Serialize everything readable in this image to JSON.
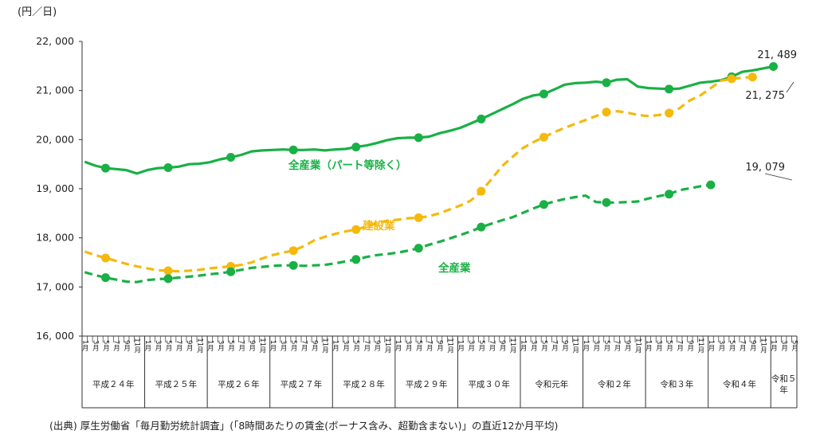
{
  "unit_label": "(円／日)",
  "source_note": "(出典) 厚生労働省「毎月勤労統計調査」(「8時間あたりの賃金(ボーナス含み、超勤含まない)」の直近12か月平均)",
  "colors": {
    "all_excl_part": "#19b045",
    "construction": "#f5b90d",
    "all_industries": "#19b045"
  },
  "chart_data": {
    "type": "line",
    "title": "",
    "xlabel": "",
    "ylabel": "(円／日)",
    "ylim": [
      16000,
      22000
    ],
    "yticks": [
      "16, 000",
      "17, 000",
      "18, 000",
      "19, 000",
      "20, 000",
      "21, 000",
      "22, 000"
    ],
    "month_ticks": [
      "1月",
      "3月",
      "5月",
      "7月",
      "9月",
      "11月"
    ],
    "last_month_ticks": [
      "1月",
      "3月",
      "5月"
    ],
    "years": [
      "平成２４年",
      "平成２５年",
      "平成２６年",
      "平成２７年",
      "平成２８年",
      "平成２９年",
      "平成３０年",
      "令和元年",
      "令和２年",
      "令和３年",
      "令和４年",
      "令和５\n年"
    ],
    "x_index_note": "months since 平成24年1月",
    "series": [
      {
        "name": "全産業（パート等除く）",
        "style": "solid",
        "marker_at": [
          4,
          16,
          28,
          40,
          52,
          64,
          76,
          88,
          100,
          112,
          124,
          136
        ],
        "points": [
          [
            0,
            19550
          ],
          [
            2,
            19470
          ],
          [
            4,
            19420
          ],
          [
            6,
            19400
          ],
          [
            8,
            19380
          ],
          [
            10,
            19310
          ],
          [
            12,
            19380
          ],
          [
            14,
            19420
          ],
          [
            16,
            19430
          ],
          [
            18,
            19450
          ],
          [
            20,
            19500
          ],
          [
            22,
            19510
          ],
          [
            24,
            19540
          ],
          [
            26,
            19600
          ],
          [
            28,
            19640
          ],
          [
            30,
            19690
          ],
          [
            32,
            19760
          ],
          [
            34,
            19780
          ],
          [
            36,
            19790
          ],
          [
            38,
            19800
          ],
          [
            40,
            19790
          ],
          [
            42,
            19790
          ],
          [
            44,
            19800
          ],
          [
            46,
            19780
          ],
          [
            48,
            19800
          ],
          [
            50,
            19810
          ],
          [
            52,
            19850
          ],
          [
            54,
            19880
          ],
          [
            56,
            19930
          ],
          [
            58,
            19990
          ],
          [
            60,
            20030
          ],
          [
            62,
            20040
          ],
          [
            64,
            20040
          ],
          [
            66,
            20060
          ],
          [
            68,
            20130
          ],
          [
            70,
            20180
          ],
          [
            72,
            20240
          ],
          [
            74,
            20330
          ],
          [
            76,
            20420
          ],
          [
            78,
            20520
          ],
          [
            80,
            20620
          ],
          [
            82,
            20720
          ],
          [
            84,
            20830
          ],
          [
            86,
            20900
          ],
          [
            88,
            20930
          ],
          [
            90,
            21020
          ],
          [
            92,
            21120
          ],
          [
            94,
            21150
          ],
          [
            96,
            21160
          ],
          [
            98,
            21180
          ],
          [
            100,
            21160
          ],
          [
            102,
            21220
          ],
          [
            104,
            21230
          ],
          [
            106,
            21080
          ],
          [
            108,
            21050
          ],
          [
            110,
            21040
          ],
          [
            112,
            21030
          ],
          [
            114,
            21040
          ],
          [
            116,
            21100
          ],
          [
            118,
            21160
          ],
          [
            120,
            21180
          ],
          [
            122,
            21210
          ],
          [
            124,
            21280
          ],
          [
            126,
            21380
          ],
          [
            128,
            21410
          ],
          [
            130,
            21450
          ],
          [
            132,
            21489
          ]
        ]
      },
      {
        "name": "建設業",
        "style": "dashed",
        "marker_at": [
          4,
          16,
          28,
          40,
          52,
          64,
          76,
          88,
          100,
          112,
          124,
          136
        ],
        "points": [
          [
            0,
            17720
          ],
          [
            2,
            17650
          ],
          [
            4,
            17590
          ],
          [
            6,
            17530
          ],
          [
            8,
            17470
          ],
          [
            10,
            17420
          ],
          [
            12,
            17380
          ],
          [
            14,
            17340
          ],
          [
            16,
            17330
          ],
          [
            18,
            17320
          ],
          [
            20,
            17330
          ],
          [
            22,
            17350
          ],
          [
            24,
            17380
          ],
          [
            26,
            17400
          ],
          [
            28,
            17420
          ],
          [
            30,
            17450
          ],
          [
            32,
            17500
          ],
          [
            34,
            17580
          ],
          [
            36,
            17650
          ],
          [
            38,
            17700
          ],
          [
            40,
            17740
          ],
          [
            42,
            17830
          ],
          [
            44,
            17950
          ],
          [
            46,
            18020
          ],
          [
            48,
            18080
          ],
          [
            50,
            18130
          ],
          [
            52,
            18170
          ],
          [
            54,
            18230
          ],
          [
            56,
            18300
          ],
          [
            58,
            18350
          ],
          [
            60,
            18370
          ],
          [
            62,
            18400
          ],
          [
            64,
            18410
          ],
          [
            66,
            18440
          ],
          [
            68,
            18500
          ],
          [
            70,
            18580
          ],
          [
            72,
            18660
          ],
          [
            74,
            18760
          ],
          [
            76,
            18950
          ],
          [
            78,
            19200
          ],
          [
            80,
            19460
          ],
          [
            82,
            19650
          ],
          [
            84,
            19830
          ],
          [
            86,
            19950
          ],
          [
            88,
            20050
          ],
          [
            90,
            20150
          ],
          [
            92,
            20240
          ],
          [
            94,
            20320
          ],
          [
            96,
            20400
          ],
          [
            98,
            20480
          ],
          [
            100,
            20560
          ],
          [
            102,
            20580
          ],
          [
            104,
            20550
          ],
          [
            106,
            20500
          ],
          [
            108,
            20480
          ],
          [
            110,
            20500
          ],
          [
            112,
            20540
          ],
          [
            114,
            20640
          ],
          [
            116,
            20800
          ],
          [
            118,
            20900
          ],
          [
            120,
            21050
          ],
          [
            122,
            21200
          ],
          [
            124,
            21240
          ],
          [
            126,
            21260
          ],
          [
            128,
            21275
          ]
        ]
      },
      {
        "name": "全産業",
        "style": "dashed",
        "marker_at": [
          4,
          16,
          28,
          40,
          52,
          64,
          76,
          88,
          100,
          112,
          124,
          136
        ],
        "points": [
          [
            0,
            17300
          ],
          [
            2,
            17240
          ],
          [
            4,
            17190
          ],
          [
            6,
            17150
          ],
          [
            8,
            17110
          ],
          [
            10,
            17100
          ],
          [
            12,
            17140
          ],
          [
            14,
            17160
          ],
          [
            16,
            17170
          ],
          [
            18,
            17190
          ],
          [
            20,
            17210
          ],
          [
            22,
            17230
          ],
          [
            24,
            17260
          ],
          [
            26,
            17280
          ],
          [
            28,
            17310
          ],
          [
            30,
            17350
          ],
          [
            32,
            17390
          ],
          [
            34,
            17410
          ],
          [
            36,
            17430
          ],
          [
            38,
            17440
          ],
          [
            40,
            17440
          ],
          [
            42,
            17430
          ],
          [
            44,
            17440
          ],
          [
            46,
            17450
          ],
          [
            48,
            17480
          ],
          [
            50,
            17520
          ],
          [
            52,
            17560
          ],
          [
            54,
            17610
          ],
          [
            56,
            17650
          ],
          [
            58,
            17670
          ],
          [
            60,
            17700
          ],
          [
            62,
            17740
          ],
          [
            64,
            17790
          ],
          [
            66,
            17860
          ],
          [
            68,
            17920
          ],
          [
            70,
            17990
          ],
          [
            72,
            18060
          ],
          [
            74,
            18130
          ],
          [
            76,
            18220
          ],
          [
            78,
            18290
          ],
          [
            80,
            18360
          ],
          [
            82,
            18420
          ],
          [
            84,
            18510
          ],
          [
            86,
            18600
          ],
          [
            88,
            18680
          ],
          [
            90,
            18740
          ],
          [
            92,
            18790
          ],
          [
            94,
            18830
          ],
          [
            96,
            18860
          ],
          [
            98,
            18730
          ],
          [
            100,
            18720
          ],
          [
            102,
            18720
          ],
          [
            104,
            18730
          ],
          [
            106,
            18740
          ],
          [
            108,
            18800
          ],
          [
            110,
            18850
          ],
          [
            112,
            18890
          ],
          [
            114,
            18970
          ],
          [
            116,
            19010
          ],
          [
            118,
            19050
          ],
          [
            120,
            19079
          ]
        ]
      }
    ],
    "end_values": [
      "21, 489",
      "21, 275",
      "19, 079"
    ],
    "grid": false,
    "legend": "inline labels"
  }
}
